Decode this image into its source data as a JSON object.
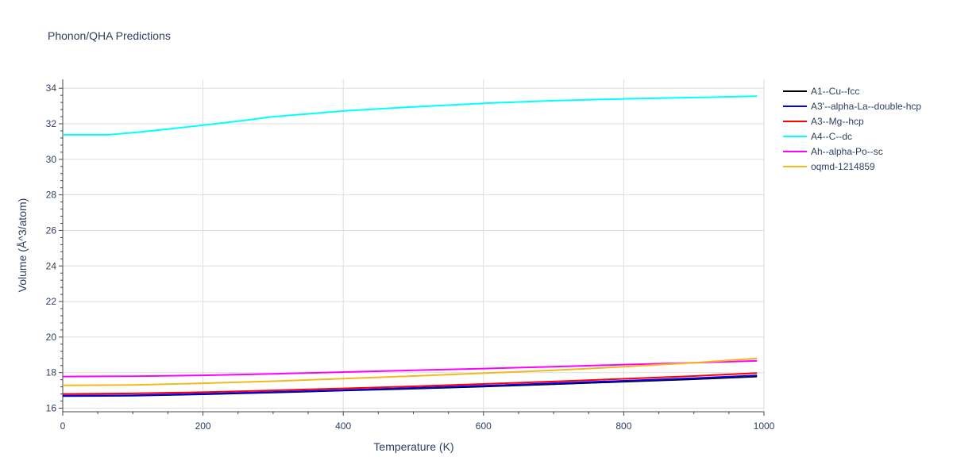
{
  "chart_data": {
    "type": "line",
    "title": "Phonon/QHA Predictions",
    "xlabel": "Temperature (K)",
    "ylabel": "Volume (Å^3/atom)",
    "xlim": [
      0,
      1000
    ],
    "ylim": [
      15.8,
      34.5
    ],
    "x_ticks": [
      0,
      200,
      400,
      600,
      800,
      1000
    ],
    "y_ticks": [
      16,
      18,
      20,
      22,
      24,
      26,
      28,
      30,
      32,
      34
    ],
    "grid": true,
    "legend_position": "top-right outside",
    "series": [
      {
        "name": "A1--Cu--fcc",
        "color": "#000000",
        "x": [
          0,
          100,
          200,
          300,
          400,
          500,
          600,
          700,
          800,
          900,
          990
        ],
        "y": [
          16.68,
          16.7,
          16.78,
          16.88,
          16.99,
          17.1,
          17.22,
          17.35,
          17.49,
          17.63,
          17.78
        ]
      },
      {
        "name": "A3'--alpha-La--double-hcp",
        "color": "#0000ff",
        "x": [
          0,
          100,
          200,
          300,
          400,
          500,
          600,
          700,
          800,
          900,
          990
        ],
        "y": [
          16.7,
          16.73,
          16.81,
          16.91,
          17.02,
          17.14,
          17.26,
          17.4,
          17.54,
          17.69,
          17.84
        ]
      },
      {
        "name": "A3--Mg--hcp",
        "color": "#ff0000",
        "x": [
          0,
          100,
          200,
          300,
          400,
          500,
          600,
          700,
          800,
          900,
          990
        ],
        "y": [
          16.8,
          16.83,
          16.9,
          17.0,
          17.11,
          17.23,
          17.36,
          17.5,
          17.65,
          17.81,
          17.98
        ]
      },
      {
        "name": "A4--C--dc",
        "color": "#00ffff",
        "x": [
          0,
          65,
          100,
          150,
          200,
          250,
          300,
          400,
          500,
          600,
          700,
          800,
          900,
          990
        ],
        "y": [
          31.38,
          31.38,
          31.5,
          31.7,
          31.92,
          32.15,
          32.4,
          32.72,
          32.95,
          33.15,
          33.3,
          33.4,
          33.48,
          33.55
        ]
      },
      {
        "name": "Ah--alpha-Po--sc",
        "color": "#ff00ff",
        "x": [
          0,
          100,
          200,
          300,
          400,
          500,
          600,
          700,
          800,
          900,
          990
        ],
        "y": [
          17.78,
          17.8,
          17.85,
          17.93,
          18.03,
          18.13,
          18.23,
          18.33,
          18.45,
          18.56,
          18.66
        ]
      },
      {
        "name": "oqmd-1214859",
        "color": "#f2b91c",
        "x": [
          0,
          100,
          200,
          300,
          400,
          500,
          600,
          700,
          800,
          900,
          990
        ],
        "y": [
          17.28,
          17.31,
          17.4,
          17.52,
          17.66,
          17.81,
          17.97,
          18.13,
          18.33,
          18.56,
          18.8
        ]
      }
    ]
  }
}
